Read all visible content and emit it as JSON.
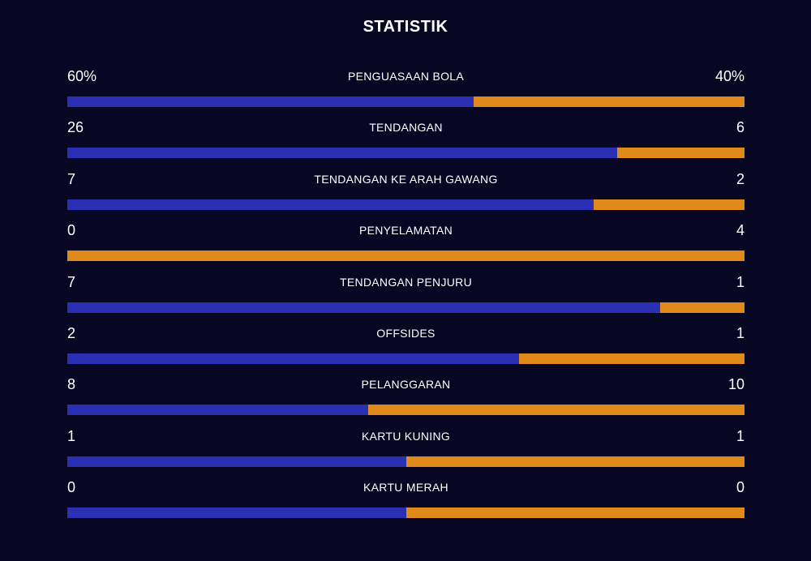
{
  "title": "STATISTIK",
  "colors": {
    "background": "#070724",
    "home": "#2b2fb4",
    "away": "#e08a1c"
  },
  "stats": [
    {
      "label": "PENGUASAAN BOLA",
      "home": "60%",
      "away": "40%",
      "home_share": 0.6
    },
    {
      "label": "TENDANGAN",
      "home": "26",
      "away": "6",
      "home_share": 0.8125
    },
    {
      "label": "TENDANGAN KE ARAH GAWANG",
      "home": "7",
      "away": "2",
      "home_share": 0.7778
    },
    {
      "label": "PENYELAMATAN",
      "home": "0",
      "away": "4",
      "home_share": 0.0
    },
    {
      "label": "TENDANGAN PENJURU",
      "home": "7",
      "away": "1",
      "home_share": 0.875
    },
    {
      "label": "OFFSIDES",
      "home": "2",
      "away": "1",
      "home_share": 0.6667
    },
    {
      "label": "PELANGGARAN",
      "home": "8",
      "away": "10",
      "home_share": 0.4444
    },
    {
      "label": "KARTU KUNING",
      "home": "1",
      "away": "1",
      "home_share": 0.5
    },
    {
      "label": "KARTU MERAH",
      "home": "0",
      "away": "0",
      "home_share": 0.5
    }
  ]
}
